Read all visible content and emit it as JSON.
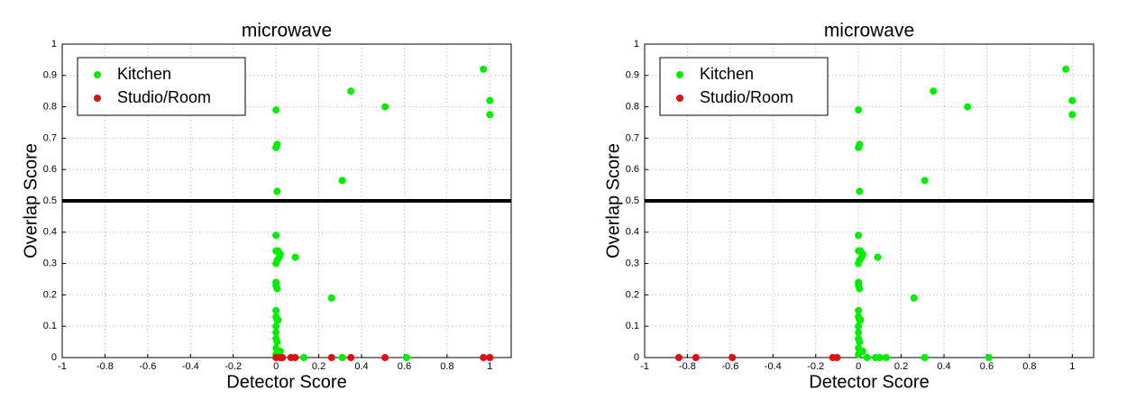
{
  "chart_data": [
    {
      "type": "scatter",
      "title": "microwave",
      "x_label": "Detector Score",
      "y_label": "Overlap Score",
      "xlim": [
        -1,
        1.1
      ],
      "ylim": [
        0,
        1
      ],
      "xticks": [
        -1,
        -0.8,
        -0.6,
        -0.4,
        -0.2,
        0,
        0.2,
        0.4,
        0.6,
        0.8,
        1
      ],
      "yticks": [
        0,
        0.1,
        0.2,
        0.3,
        0.4,
        0.5,
        0.6,
        0.7,
        0.8,
        0.9,
        1
      ],
      "grid": true,
      "legend": "upper left",
      "hline": 0.5,
      "series": [
        {
          "name": "Kitchen",
          "color": "#00ee00",
          "x": [
            0,
            0,
            0.005,
            0.005,
            0,
            0,
            0.01,
            0.02,
            0.005,
            0.015,
            0,
            0.09,
            0,
            0,
            0.005,
            0,
            0,
            0.005,
            0.01,
            0,
            0,
            0,
            0.005,
            0,
            0.02,
            0,
            0.13,
            0.31,
            0.61,
            0.26,
            0.31,
            0.35,
            0.51,
            0.97,
            1.0,
            1.0
          ],
          "values": [
            0.79,
            0.67,
            0.68,
            0.53,
            0.39,
            0.34,
            0.34,
            0.33,
            0.31,
            0.32,
            0.3,
            0.32,
            0.24,
            0.23,
            0.22,
            0.15,
            0.13,
            0.12,
            0.12,
            0.1,
            0.08,
            0.06,
            0.05,
            0.03,
            0.02,
            0.01,
            0,
            0,
            0,
            0.19,
            0.565,
            0.85,
            0.8,
            0.92,
            0.82,
            0.775
          ]
        },
        {
          "name": "Studio/Room",
          "color": "#dd1111",
          "x": [
            0,
            0.02,
            0.03,
            0.07,
            0.09,
            0.26,
            0.35,
            0.51,
            0.97,
            1.0
          ],
          "values": [
            0,
            0,
            0,
            0,
            0,
            0,
            0,
            0,
            0,
            0
          ]
        }
      ]
    },
    {
      "type": "scatter",
      "title": "microwave",
      "x_label": "Detector Score",
      "y_label": "Overlap Score",
      "xlim": [
        -1,
        1.1
      ],
      "ylim": [
        0,
        1
      ],
      "xticks": [
        -1,
        -0.8,
        -0.6,
        -0.4,
        -0.2,
        0,
        0.2,
        0.4,
        0.6,
        0.8,
        1
      ],
      "yticks": [
        0,
        0.1,
        0.2,
        0.3,
        0.4,
        0.5,
        0.6,
        0.7,
        0.8,
        0.9,
        1
      ],
      "grid": true,
      "legend": "upper left",
      "hline": 0.5,
      "series": [
        {
          "name": "Kitchen",
          "color": "#00ee00",
          "x": [
            0,
            0,
            0.005,
            0.005,
            0,
            0,
            0.01,
            0.02,
            0.005,
            0.015,
            0,
            0.09,
            0,
            0,
            0.005,
            0,
            0,
            0.005,
            0.01,
            0,
            0,
            0,
            0.005,
            0,
            0.02,
            0,
            0.04,
            0.08,
            0.1,
            0.13,
            0.31,
            0.61,
            0.26,
            0.31,
            0.35,
            0.51,
            0.97,
            1.0,
            1.0
          ],
          "values": [
            0.79,
            0.67,
            0.68,
            0.53,
            0.39,
            0.34,
            0.34,
            0.33,
            0.31,
            0.32,
            0.3,
            0.32,
            0.24,
            0.23,
            0.22,
            0.15,
            0.13,
            0.12,
            0.12,
            0.1,
            0.08,
            0.06,
            0.05,
            0.03,
            0.02,
            0.01,
            0,
            0,
            0,
            0,
            0,
            0,
            0.19,
            0.565,
            0.85,
            0.8,
            0.92,
            0.82,
            0.775
          ]
        },
        {
          "name": "Studio/Room",
          "color": "#dd1111",
          "x": [
            -0.84,
            -0.76,
            -0.59,
            -0.12,
            -0.1
          ],
          "values": [
            0,
            0,
            0,
            0,
            0
          ]
        }
      ]
    }
  ]
}
